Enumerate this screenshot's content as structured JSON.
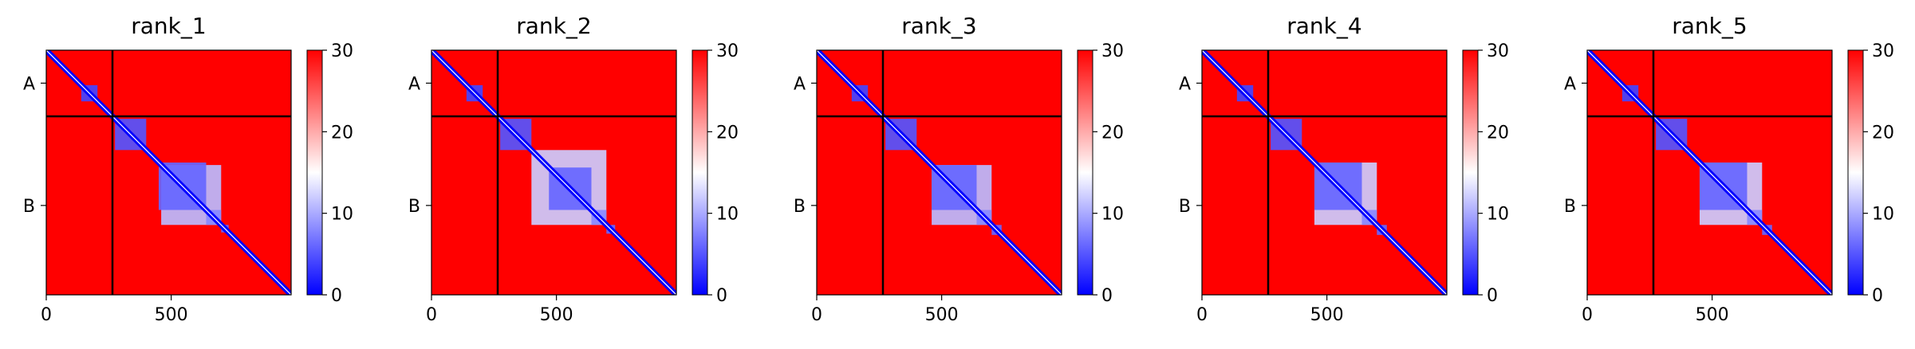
{
  "chart_data": {
    "type": "heatmap",
    "colormap": {
      "name": "bwr",
      "low": "#0000ff",
      "mid": "#ffffff",
      "high": "#ff0000"
    },
    "boundary_line_color": "#000000",
    "shared": {
      "vmin": 0,
      "vmax": 30,
      "colorbar_ticks": [
        0,
        10,
        20,
        30
      ],
      "x_ticks": [
        0,
        500
      ],
      "xlim": [
        0,
        980
      ],
      "chain_boundary": 265,
      "y_chain_labels": [
        {
          "label": "A",
          "center": 132
        },
        {
          "label": "B",
          "center": 622
        }
      ],
      "grid": false,
      "legend": "none"
    },
    "panels": [
      {
        "title": "rank_1",
        "blocks": [
          {
            "range": [
              140,
              205
            ],
            "value": 4
          },
          {
            "range": [
              275,
              400
            ],
            "value": 5
          },
          {
            "range": [
              450,
              640
            ],
            "value": 6
          },
          {
            "range": [
              460,
              700
            ],
            "value": 11
          },
          {
            "range": [
              640,
              700
            ],
            "value": 8
          },
          {
            "range": [
              700,
              730
            ],
            "value": 6
          }
        ]
      },
      {
        "title": "rank_2",
        "blocks": [
          {
            "range": [
              140,
              205
            ],
            "value": 4
          },
          {
            "range": [
              275,
              400
            ],
            "value": 5
          },
          {
            "range": [
              400,
              700
            ],
            "value": 12
          },
          {
            "range": [
              470,
              640
            ],
            "value": 6
          },
          {
            "range": [
              640,
              700
            ],
            "value": 8
          },
          {
            "range": [
              700,
              735
            ],
            "value": 6
          }
        ]
      },
      {
        "title": "rank_3",
        "blocks": [
          {
            "range": [
              140,
              205
            ],
            "value": 4
          },
          {
            "range": [
              275,
              400
            ],
            "value": 5
          },
          {
            "range": [
              460,
              640
            ],
            "value": 6
          },
          {
            "range": [
              460,
              700
            ],
            "value": 11
          },
          {
            "range": [
              640,
              700
            ],
            "value": 8
          },
          {
            "range": [
              700,
              740
            ],
            "value": 6
          }
        ]
      },
      {
        "title": "rank_4",
        "blocks": [
          {
            "range": [
              140,
              205
            ],
            "value": 4
          },
          {
            "range": [
              275,
              400
            ],
            "value": 5
          },
          {
            "range": [
              450,
              640
            ],
            "value": 6
          },
          {
            "range": [
              450,
              700
            ],
            "value": 12
          },
          {
            "range": [
              640,
              700
            ],
            "value": 8
          },
          {
            "range": [
              700,
              740
            ],
            "value": 6
          }
        ]
      },
      {
        "title": "rank_5",
        "blocks": [
          {
            "range": [
              140,
              205
            ],
            "value": 4
          },
          {
            "range": [
              275,
              400
            ],
            "value": 5
          },
          {
            "range": [
              450,
              640
            ],
            "value": 6
          },
          {
            "range": [
              450,
              700
            ],
            "value": 12
          },
          {
            "range": [
              640,
              700
            ],
            "value": 8
          },
          {
            "range": [
              700,
              740
            ],
            "value": 6
          }
        ]
      }
    ]
  }
}
